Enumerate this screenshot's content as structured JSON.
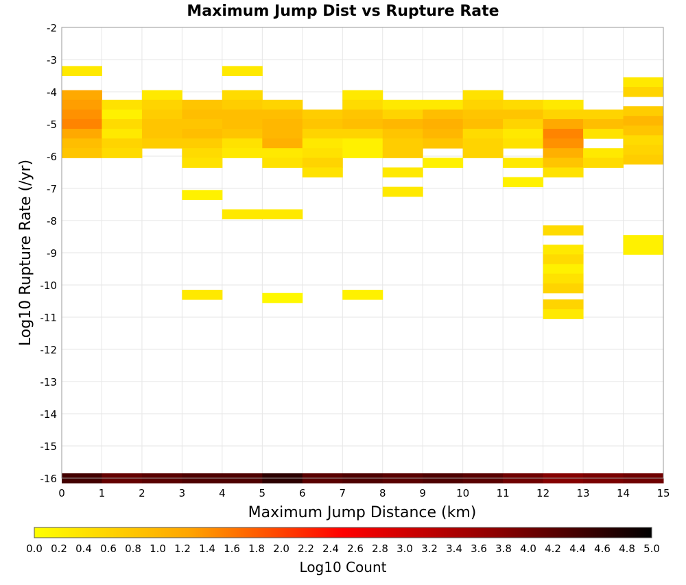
{
  "chart_data": {
    "type": "heatmap",
    "title": "Maximum Jump Dist vs Rupture Rate",
    "xlabel": "Maximum Jump Distance (km)",
    "ylabel": "Log10 Rupture Rate (/yr)",
    "xlim": [
      0,
      15
    ],
    "ylim": [
      -16,
      -2
    ],
    "x_ticks": [
      "0",
      "1",
      "2",
      "3",
      "4",
      "5",
      "6",
      "7",
      "8",
      "9",
      "10",
      "11",
      "12",
      "13",
      "14",
      "15"
    ],
    "y_ticks": [
      "-2",
      "-3",
      "-4",
      "-5",
      "-6",
      "-7",
      "-8",
      "-9",
      "-10",
      "-11",
      "-12",
      "-13",
      "-14",
      "-15",
      "-16"
    ],
    "grid": true,
    "x_bin_width": 1,
    "y_bin_width": 0.3,
    "colorbar": {
      "label": "Log10 Count",
      "min": 0,
      "max": 5,
      "ticks": [
        "0.0",
        "0.2",
        "0.4",
        "0.6",
        "0.8",
        "1.0",
        "1.2",
        "1.4",
        "1.6",
        "1.8",
        "2.0",
        "2.2",
        "2.4",
        "2.6",
        "2.8",
        "3.0",
        "3.2",
        "3.4",
        "3.6",
        "3.8",
        "4.0",
        "4.2",
        "4.4",
        "4.6",
        "4.8",
        "5.0"
      ],
      "colors": [
        "#ffff00",
        "#ffa500",
        "#ff0000",
        "#8b0000",
        "#000000"
      ]
    },
    "cells": [
      {
        "x": 0.5,
        "y": -3.35,
        "v": 0.3
      },
      {
        "x": 0.5,
        "y": -4.1,
        "v": 1.2
      },
      {
        "x": 0.5,
        "y": -4.4,
        "v": 1.3
      },
      {
        "x": 0.5,
        "y": -4.7,
        "v": 1.4
      },
      {
        "x": 0.5,
        "y": -5.0,
        "v": 1.5
      },
      {
        "x": 0.5,
        "y": -5.3,
        "v": 1.2
      },
      {
        "x": 0.5,
        "y": -5.6,
        "v": 0.9
      },
      {
        "x": 0.5,
        "y": -5.9,
        "v": 0.8
      },
      {
        "x": 1.5,
        "y": -4.4,
        "v": 0.4
      },
      {
        "x": 1.5,
        "y": -4.7,
        "v": 0.2
      },
      {
        "x": 1.5,
        "y": -5.0,
        "v": 0.5
      },
      {
        "x": 1.5,
        "y": -5.3,
        "v": 0.3
      },
      {
        "x": 1.5,
        "y": -5.6,
        "v": 0.6
      },
      {
        "x": 1.5,
        "y": -5.9,
        "v": 0.5
      },
      {
        "x": 2.5,
        "y": -4.1,
        "v": 0.3
      },
      {
        "x": 2.5,
        "y": -4.4,
        "v": 0.6
      },
      {
        "x": 2.5,
        "y": -4.7,
        "v": 0.7
      },
      {
        "x": 2.5,
        "y": -5.0,
        "v": 0.8
      },
      {
        "x": 2.5,
        "y": -5.3,
        "v": 0.8
      },
      {
        "x": 2.5,
        "y": -5.6,
        "v": 0.7
      },
      {
        "x": 3.5,
        "y": -4.4,
        "v": 0.8
      },
      {
        "x": 3.5,
        "y": -4.7,
        "v": 0.9
      },
      {
        "x": 3.5,
        "y": -5.0,
        "v": 0.8
      },
      {
        "x": 3.5,
        "y": -5.3,
        "v": 0.9
      },
      {
        "x": 3.5,
        "y": -5.6,
        "v": 0.7
      },
      {
        "x": 3.5,
        "y": -5.9,
        "v": 0.5
      },
      {
        "x": 3.5,
        "y": -6.2,
        "v": 0.4
      },
      {
        "x": 3.5,
        "y": -7.2,
        "v": 0.2
      },
      {
        "x": 3.5,
        "y": -10.3,
        "v": 0.3
      },
      {
        "x": 4.5,
        "y": -3.35,
        "v": 0.3
      },
      {
        "x": 4.5,
        "y": -4.1,
        "v": 0.5
      },
      {
        "x": 4.5,
        "y": -4.4,
        "v": 0.7
      },
      {
        "x": 4.5,
        "y": -4.7,
        "v": 0.9
      },
      {
        "x": 4.5,
        "y": -5.0,
        "v": 0.9
      },
      {
        "x": 4.5,
        "y": -5.3,
        "v": 0.8
      },
      {
        "x": 4.5,
        "y": -5.6,
        "v": 0.4
      },
      {
        "x": 4.5,
        "y": -5.9,
        "v": 0.3
      },
      {
        "x": 4.5,
        "y": -7.8,
        "v": 0.3
      },
      {
        "x": 5.5,
        "y": -4.4,
        "v": 0.6
      },
      {
        "x": 5.5,
        "y": -4.7,
        "v": 0.9
      },
      {
        "x": 5.5,
        "y": -5.0,
        "v": 1.0
      },
      {
        "x": 5.5,
        "y": -5.3,
        "v": 1.0
      },
      {
        "x": 5.5,
        "y": -5.6,
        "v": 1.1
      },
      {
        "x": 5.5,
        "y": -5.9,
        "v": 0.3
      },
      {
        "x": 5.5,
        "y": -6.2,
        "v": 0.4
      },
      {
        "x": 5.5,
        "y": -7.8,
        "v": 0.3
      },
      {
        "x": 5.5,
        "y": -10.4,
        "v": 0.1
      },
      {
        "x": 6.5,
        "y": -4.7,
        "v": 0.7
      },
      {
        "x": 6.5,
        "y": -5.0,
        "v": 0.8
      },
      {
        "x": 6.5,
        "y": -5.3,
        "v": 0.6
      },
      {
        "x": 6.5,
        "y": -5.6,
        "v": 0.3
      },
      {
        "x": 6.5,
        "y": -5.9,
        "v": 0.4
      },
      {
        "x": 6.5,
        "y": -6.2,
        "v": 0.6
      },
      {
        "x": 6.5,
        "y": -6.5,
        "v": 0.4
      },
      {
        "x": 7.5,
        "y": -4.1,
        "v": 0.3
      },
      {
        "x": 7.5,
        "y": -4.4,
        "v": 0.5
      },
      {
        "x": 7.5,
        "y": -4.7,
        "v": 0.8
      },
      {
        "x": 7.5,
        "y": -5.0,
        "v": 0.9
      },
      {
        "x": 7.5,
        "y": -5.3,
        "v": 0.6
      },
      {
        "x": 7.5,
        "y": -5.6,
        "v": 0.2
      },
      {
        "x": 7.5,
        "y": -5.9,
        "v": 0.2
      },
      {
        "x": 7.5,
        "y": -10.3,
        "v": 0.2
      },
      {
        "x": 8.5,
        "y": -4.4,
        "v": 0.3
      },
      {
        "x": 8.5,
        "y": -4.7,
        "v": 0.6
      },
      {
        "x": 8.5,
        "y": -5.0,
        "v": 1.0
      },
      {
        "x": 8.5,
        "y": -5.3,
        "v": 0.8
      },
      {
        "x": 8.5,
        "y": -5.6,
        "v": 0.7
      },
      {
        "x": 8.5,
        "y": -5.9,
        "v": 0.7
      },
      {
        "x": 8.5,
        "y": -6.5,
        "v": 0.3
      },
      {
        "x": 8.5,
        "y": -7.1,
        "v": 0.3
      },
      {
        "x": 9.5,
        "y": -4.4,
        "v": 0.3
      },
      {
        "x": 9.5,
        "y": -4.7,
        "v": 0.9
      },
      {
        "x": 9.5,
        "y": -5.0,
        "v": 1.1
      },
      {
        "x": 9.5,
        "y": -5.3,
        "v": 1.0
      },
      {
        "x": 9.5,
        "y": -5.6,
        "v": 0.8
      },
      {
        "x": 9.5,
        "y": -6.2,
        "v": 0.2
      },
      {
        "x": 10.5,
        "y": -4.1,
        "v": 0.4
      },
      {
        "x": 10.5,
        "y": -4.4,
        "v": 0.6
      },
      {
        "x": 10.5,
        "y": -4.7,
        "v": 0.8
      },
      {
        "x": 10.5,
        "y": -5.0,
        "v": 0.9
      },
      {
        "x": 10.5,
        "y": -5.3,
        "v": 0.5
      },
      {
        "x": 10.5,
        "y": -5.6,
        "v": 0.6
      },
      {
        "x": 10.5,
        "y": -5.9,
        "v": 0.6
      },
      {
        "x": 11.5,
        "y": -4.4,
        "v": 0.5
      },
      {
        "x": 11.5,
        "y": -4.7,
        "v": 0.8
      },
      {
        "x": 11.5,
        "y": -5.0,
        "v": 0.6
      },
      {
        "x": 11.5,
        "y": -5.3,
        "v": 0.3
      },
      {
        "x": 11.5,
        "y": -5.6,
        "v": 0.4
      },
      {
        "x": 11.5,
        "y": -6.2,
        "v": 0.3
      },
      {
        "x": 11.5,
        "y": -6.8,
        "v": 0.2
      },
      {
        "x": 12.5,
        "y": -4.4,
        "v": 0.3
      },
      {
        "x": 12.5,
        "y": -4.7,
        "v": 0.6
      },
      {
        "x": 12.5,
        "y": -5.0,
        "v": 1.2
      },
      {
        "x": 12.5,
        "y": -5.3,
        "v": 1.5
      },
      {
        "x": 12.5,
        "y": -5.6,
        "v": 1.4
      },
      {
        "x": 12.5,
        "y": -5.9,
        "v": 1.1
      },
      {
        "x": 12.5,
        "y": -6.2,
        "v": 0.8
      },
      {
        "x": 12.5,
        "y": -6.5,
        "v": 0.4
      },
      {
        "x": 12.5,
        "y": -8.3,
        "v": 0.5
      },
      {
        "x": 12.5,
        "y": -8.9,
        "v": 0.3
      },
      {
        "x": 12.5,
        "y": -9.2,
        "v": 0.5
      },
      {
        "x": 12.5,
        "y": -9.5,
        "v": 0.2
      },
      {
        "x": 12.5,
        "y": -9.8,
        "v": 0.4
      },
      {
        "x": 12.5,
        "y": -10.1,
        "v": 0.6
      },
      {
        "x": 12.5,
        "y": -10.6,
        "v": 0.6
      },
      {
        "x": 12.5,
        "y": -10.9,
        "v": 0.3
      },
      {
        "x": 13.5,
        "y": -4.7,
        "v": 0.6
      },
      {
        "x": 13.5,
        "y": -5.0,
        "v": 0.9
      },
      {
        "x": 13.5,
        "y": -5.3,
        "v": 0.4
      },
      {
        "x": 13.5,
        "y": -5.9,
        "v": 0.3
      },
      {
        "x": 13.5,
        "y": -6.2,
        "v": 0.5
      },
      {
        "x": 14.5,
        "y": -3.7,
        "v": 0.3
      },
      {
        "x": 14.5,
        "y": -4.0,
        "v": 0.6
      },
      {
        "x": 14.5,
        "y": -4.6,
        "v": 0.7
      },
      {
        "x": 14.5,
        "y": -4.9,
        "v": 1.0
      },
      {
        "x": 14.5,
        "y": -5.2,
        "v": 0.8
      },
      {
        "x": 14.5,
        "y": -5.5,
        "v": 0.5
      },
      {
        "x": 14.5,
        "y": -5.8,
        "v": 0.6
      },
      {
        "x": 14.5,
        "y": -6.1,
        "v": 0.7
      },
      {
        "x": 14.5,
        "y": -8.6,
        "v": 0.2
      },
      {
        "x": 14.5,
        "y": -8.9,
        "v": 0.2
      },
      {
        "x": 0.5,
        "y": -16.0,
        "v": 4.4
      },
      {
        "x": 1.5,
        "y": -16.0,
        "v": 4.1
      },
      {
        "x": 2.5,
        "y": -16.0,
        "v": 4.2
      },
      {
        "x": 3.5,
        "y": -16.0,
        "v": 4.3
      },
      {
        "x": 4.5,
        "y": -16.0,
        "v": 4.3
      },
      {
        "x": 5.5,
        "y": -16.0,
        "v": 4.6
      },
      {
        "x": 6.5,
        "y": -16.0,
        "v": 4.2
      },
      {
        "x": 7.5,
        "y": -16.0,
        "v": 4.3
      },
      {
        "x": 8.5,
        "y": -16.0,
        "v": 4.2
      },
      {
        "x": 9.5,
        "y": -16.0,
        "v": 4.3
      },
      {
        "x": 10.5,
        "y": -16.0,
        "v": 4.2
      },
      {
        "x": 11.5,
        "y": -16.0,
        "v": 4.0
      },
      {
        "x": 12.5,
        "y": -16.0,
        "v": 3.8
      },
      {
        "x": 13.5,
        "y": -16.0,
        "v": 3.9
      },
      {
        "x": 14.5,
        "y": -16.0,
        "v": 4.0
      }
    ]
  }
}
